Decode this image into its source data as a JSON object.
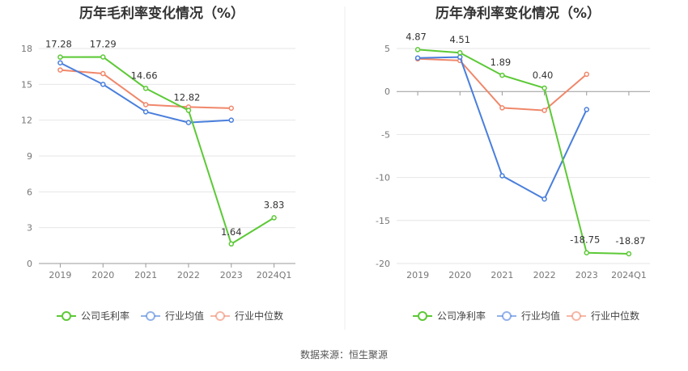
{
  "source": "数据来源：恒生聚源",
  "charts": [
    {
      "title": "历年毛利率变化情况（%）",
      "categories": [
        "2019",
        "2020",
        "2021",
        "2022",
        "2023",
        "2024Q1"
      ],
      "y_ticks": [
        "0",
        "3",
        "6",
        "9",
        "12",
        "15",
        "18"
      ],
      "legend": [
        "公司毛利率",
        "行业均值",
        "行业中位数"
      ]
    },
    {
      "title": "历年净利率变化情况（%）",
      "categories": [
        "2019",
        "2020",
        "2021",
        "2022",
        "2023",
        "2024Q1"
      ],
      "y_ticks": [
        "-20",
        "-15",
        "-10",
        "-5",
        "0",
        "5"
      ],
      "legend": [
        "公司净利率",
        "行业均值",
        "行业中位数"
      ]
    }
  ],
  "colors": {
    "company": "#5cc936",
    "avg": "#4a7fdc",
    "median": "#f0876a"
  },
  "chart_data": [
    {
      "type": "line",
      "title": "历年毛利率变化情况（%）",
      "categories": [
        "2019",
        "2020",
        "2021",
        "2022",
        "2023",
        "2024Q1"
      ],
      "ylim": [
        0,
        18
      ],
      "series": [
        {
          "name": "公司毛利率",
          "values": [
            17.28,
            17.29,
            14.66,
            12.82,
            1.64,
            3.83
          ],
          "labels": [
            "17.28",
            "17.29",
            "14.66",
            "12.82",
            "1.64",
            "3.83"
          ]
        },
        {
          "name": "行业均值",
          "values": [
            16.8,
            15.0,
            12.7,
            11.8,
            12.0,
            null
          ]
        },
        {
          "name": "行业中位数",
          "values": [
            16.2,
            15.9,
            13.3,
            13.1,
            13.0,
            null
          ]
        }
      ]
    },
    {
      "type": "line",
      "title": "历年净利率变化情况（%）",
      "categories": [
        "2019",
        "2020",
        "2021",
        "2022",
        "2023",
        "2024Q1"
      ],
      "ylim": [
        -20,
        5
      ],
      "series": [
        {
          "name": "公司净利率",
          "values": [
            4.87,
            4.51,
            1.89,
            0.4,
            -18.75,
            -18.87
          ],
          "labels": [
            "4.87",
            "4.51",
            "1.89",
            "0.40",
            "-18.75",
            "-18.87"
          ]
        },
        {
          "name": "行业均值",
          "values": [
            3.9,
            4.0,
            -9.8,
            -12.5,
            -2.1,
            null
          ]
        },
        {
          "name": "行业中位数",
          "values": [
            3.8,
            3.6,
            -1.9,
            -2.2,
            2.0,
            null
          ]
        }
      ]
    }
  ]
}
